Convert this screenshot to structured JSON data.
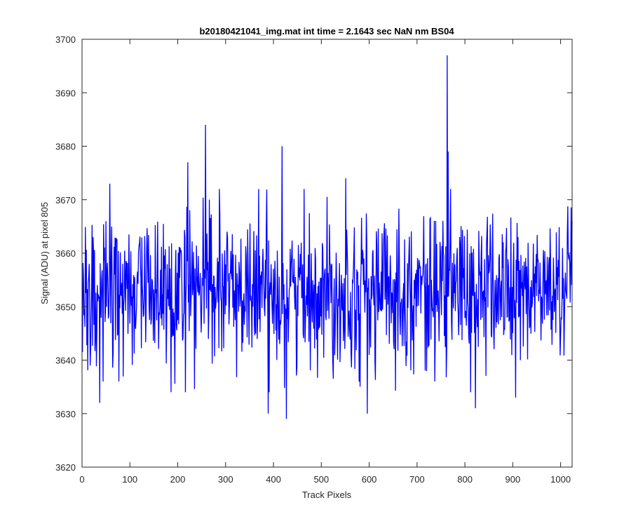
{
  "chart_data": {
    "type": "line",
    "title": "b20180421041_img.mat int time = 2.1643 sec  NaN nm BS04",
    "xlabel": "Track Pixels",
    "ylabel": "Signal (ADU) at pixel 805",
    "xlim": [
      0,
      1024
    ],
    "ylim": [
      3620,
      3700
    ],
    "xticks": [
      0,
      100,
      200,
      300,
      400,
      500,
      600,
      700,
      800,
      900,
      1000
    ],
    "yticks": [
      3620,
      3630,
      3640,
      3650,
      3660,
      3670,
      3680,
      3690,
      3700
    ],
    "grid": false,
    "legend": "none",
    "series": [
      {
        "color": "#0000ff",
        "x_start": 1,
        "x_step": 1,
        "n_points": 1024,
        "baseline": 3653,
        "noise_std": 7,
        "spikes": [
          {
            "x": 23,
            "y": 3663
          },
          {
            "x": 37,
            "y": 3632
          },
          {
            "x": 44,
            "y": 3636
          },
          {
            "x": 50,
            "y": 3666
          },
          {
            "x": 58,
            "y": 3673
          },
          {
            "x": 186,
            "y": 3634
          },
          {
            "x": 216,
            "y": 3634
          },
          {
            "x": 221,
            "y": 3677
          },
          {
            "x": 258,
            "y": 3684
          },
          {
            "x": 389,
            "y": 3630
          },
          {
            "x": 418,
            "y": 3680
          },
          {
            "x": 427,
            "y": 3629
          },
          {
            "x": 551,
            "y": 3674
          },
          {
            "x": 596,
            "y": 3630
          },
          {
            "x": 763,
            "y": 3697
          },
          {
            "x": 765,
            "y": 3679
          },
          {
            "x": 822,
            "y": 3631
          },
          {
            "x": 906,
            "y": 3633
          }
        ]
      }
    ]
  }
}
